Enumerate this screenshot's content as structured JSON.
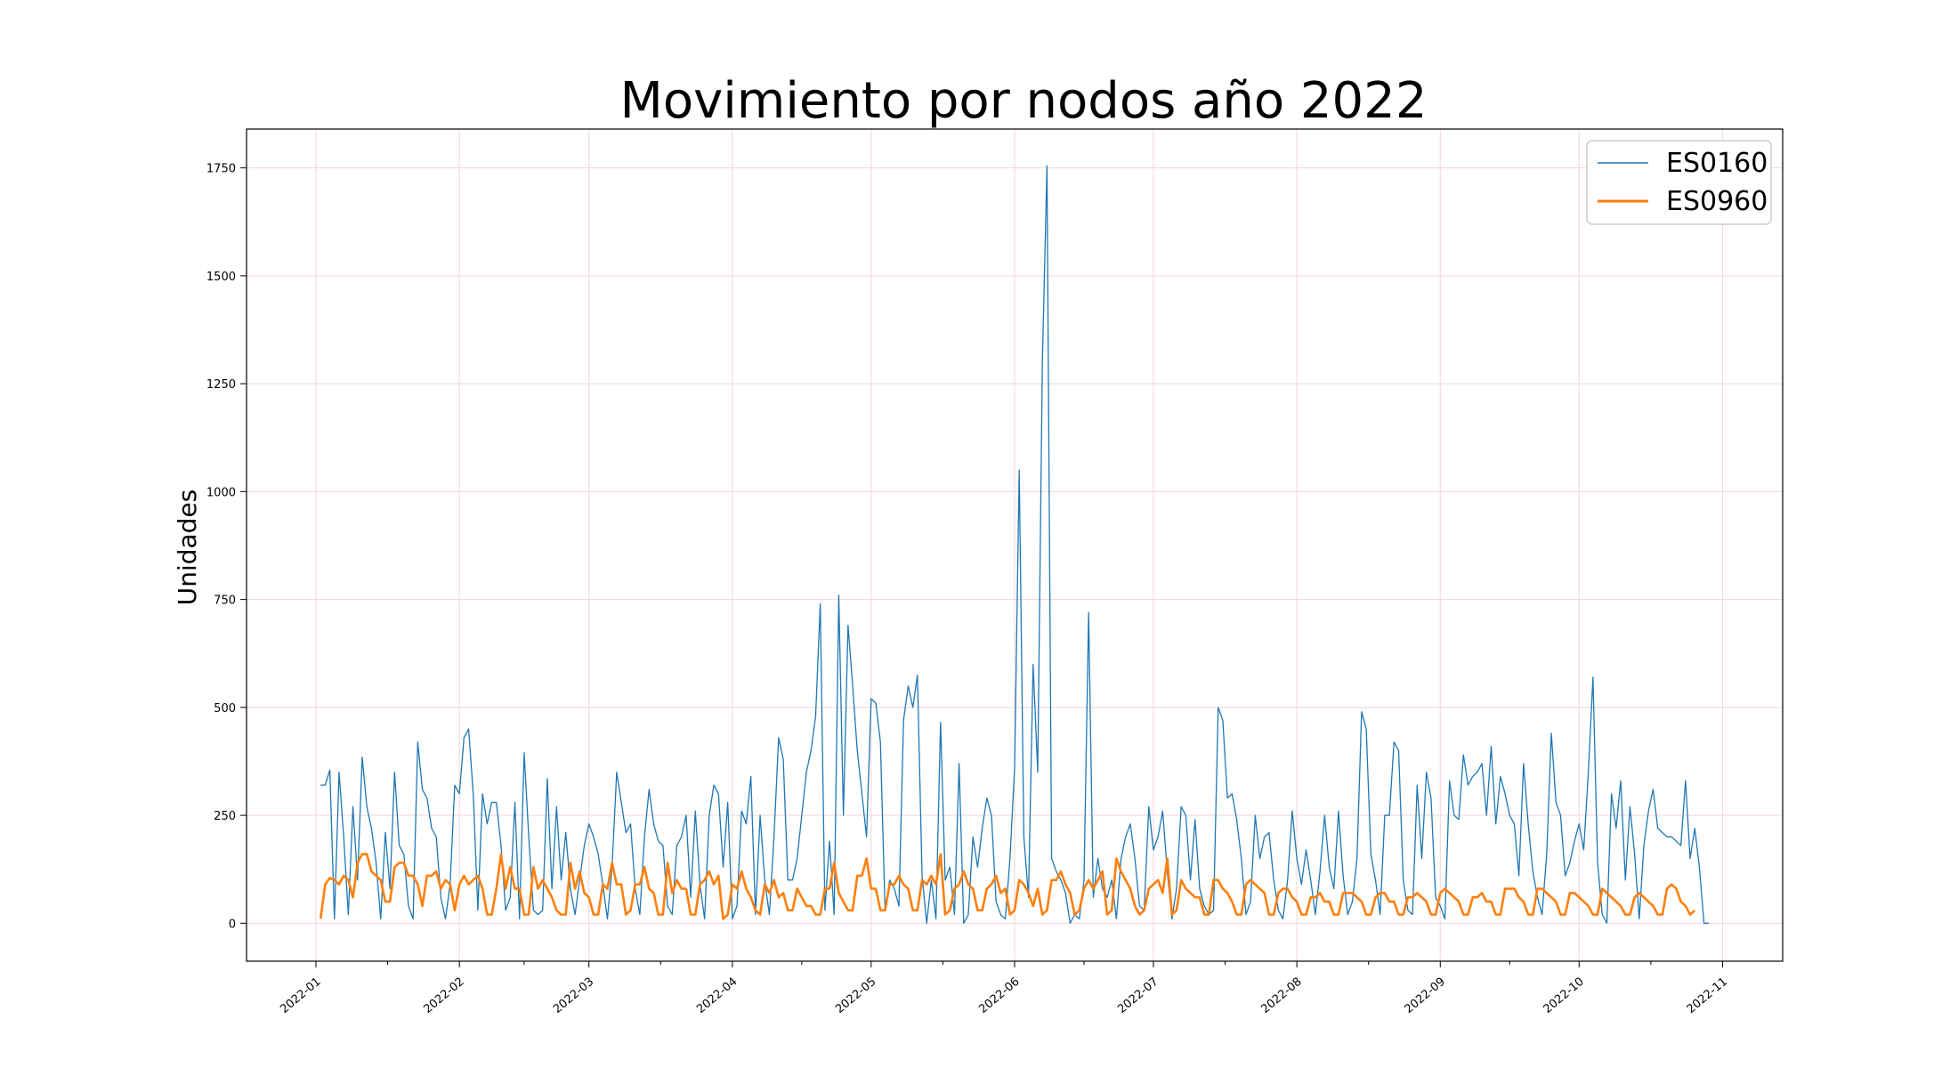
{
  "chart_data": {
    "type": "line",
    "title": "Movimiento por nodos año 2022",
    "xlabel": "",
    "ylabel": "Unidades",
    "x_ticks": [
      "2022-01",
      "2022-02",
      "2022-03",
      "2022-04",
      "2022-05",
      "2022-06",
      "2022-07",
      "2022-08",
      "2022-09",
      "2022-10",
      "2022-11"
    ],
    "y_ticks": [
      0,
      250,
      500,
      750,
      1000,
      1250,
      1500,
      1750
    ],
    "xlim": [
      "2021-12-17",
      "2022-11-14"
    ],
    "ylim": [
      -88,
      1840
    ],
    "grid": true,
    "legend_position": "top-right",
    "series": [
      {
        "name": "ES0160",
        "color": "#1f77b4",
        "start_date": "2022-01-02",
        "values": [
          320,
          320,
          355,
          10,
          350,
          200,
          20,
          270,
          100,
          385,
          270,
          220,
          140,
          10,
          210,
          80,
          350,
          180,
          160,
          40,
          10,
          420,
          310,
          290,
          220,
          200,
          60,
          10,
          90,
          320,
          300,
          430,
          450,
          300,
          30,
          300,
          230,
          280,
          280,
          180,
          30,
          60,
          280,
          10,
          395,
          200,
          30,
          20,
          30,
          335,
          80,
          270,
          100,
          210,
          80,
          20,
          100,
          180,
          230,
          200,
          160,
          90,
          10,
          130,
          350,
          280,
          210,
          230,
          80,
          20,
          200,
          310,
          230,
          190,
          180,
          40,
          20,
          180,
          200,
          250,
          60,
          260,
          90,
          10,
          250,
          320,
          300,
          130,
          280,
          10,
          40,
          260,
          230,
          340,
          20,
          250,
          100,
          20,
          200,
          430,
          380,
          100,
          100,
          150,
          250,
          350,
          400,
          480,
          740,
          30,
          190,
          20,
          760,
          250,
          690,
          550,
          400,
          300,
          200,
          520,
          510,
          420,
          30,
          100,
          80,
          40,
          470,
          550,
          500,
          575,
          110,
          0,
          100,
          10,
          465,
          100,
          130,
          20,
          370,
          0,
          20,
          200,
          130,
          220,
          290,
          250,
          50,
          20,
          10,
          150,
          360,
          1050,
          200,
          60,
          600,
          350,
          1300,
          1755,
          150,
          120,
          100,
          70,
          0,
          20,
          10,
          100,
          720,
          60,
          150,
          80,
          60,
          100,
          10,
          150,
          200,
          230,
          150,
          40,
          30,
          270,
          170,
          200,
          260,
          120,
          10,
          80,
          270,
          250,
          100,
          240,
          80,
          40,
          20,
          30,
          500,
          470,
          290,
          300,
          240,
          150,
          20,
          50,
          250,
          150,
          200,
          210,
          100,
          30,
          10,
          100,
          260,
          150,
          90,
          170,
          100,
          20,
          120,
          250,
          130,
          80,
          260,
          110,
          20,
          50,
          150,
          490,
          450,
          160,
          100,
          20,
          250,
          250,
          420,
          400,
          100,
          30,
          20,
          320,
          150,
          350,
          290,
          60,
          40,
          10,
          330,
          250,
          240,
          390,
          320,
          340,
          350,
          370,
          250,
          410,
          230,
          340,
          300,
          250,
          230,
          110,
          370,
          230,
          120,
          60,
          20,
          160,
          440,
          280,
          250,
          110,
          140,
          190,
          230,
          170,
          350,
          570,
          140,
          20,
          0,
          300,
          220,
          330,
          100,
          270,
          160,
          10,
          180,
          260,
          310,
          220,
          210,
          200,
          200,
          190,
          180,
          330,
          150,
          220,
          130,
          0,
          0
        ]
      },
      {
        "name": "ES0960",
        "color": "#ff7f0e",
        "start_date": "2022-01-02",
        "values": [
          10,
          90,
          105,
          100,
          90,
          110,
          100,
          60,
          140,
          160,
          160,
          120,
          110,
          100,
          50,
          50,
          130,
          140,
          140,
          110,
          110,
          90,
          40,
          110,
          110,
          120,
          80,
          100,
          90,
          30,
          90,
          110,
          90,
          100,
          110,
          80,
          20,
          20,
          80,
          160,
          80,
          130,
          80,
          80,
          20,
          20,
          130,
          80,
          100,
          80,
          60,
          30,
          20,
          20,
          140,
          80,
          120,
          70,
          60,
          20,
          20,
          90,
          80,
          140,
          90,
          90,
          20,
          30,
          90,
          90,
          130,
          80,
          70,
          20,
          20,
          140,
          70,
          100,
          80,
          80,
          20,
          20,
          90,
          100,
          120,
          90,
          110,
          10,
          20,
          90,
          80,
          120,
          80,
          60,
          30,
          20,
          90,
          70,
          100,
          60,
          70,
          30,
          30,
          80,
          60,
          40,
          40,
          20,
          20,
          80,
          80,
          140,
          70,
          50,
          30,
          30,
          110,
          110,
          150,
          80,
          80,
          30,
          30,
          90,
          90,
          110,
          90,
          80,
          30,
          30,
          100,
          90,
          110,
          90,
          160,
          20,
          30,
          80,
          90,
          120,
          90,
          80,
          30,
          30,
          80,
          90,
          110,
          70,
          80,
          20,
          30,
          100,
          90,
          70,
          40,
          80,
          20,
          30,
          100,
          100,
          120,
          90,
          70,
          20,
          30,
          80,
          100,
          80,
          100,
          120,
          20,
          30,
          150,
          120,
          100,
          80,
          40,
          20,
          30,
          80,
          90,
          100,
          70,
          150,
          20,
          30,
          100,
          80,
          70,
          60,
          60,
          20,
          20,
          100,
          100,
          80,
          70,
          50,
          20,
          20,
          90,
          100,
          90,
          80,
          70,
          20,
          20,
          70,
          80,
          80,
          60,
          50,
          20,
          20,
          60,
          60,
          70,
          50,
          50,
          20,
          20,
          70,
          70,
          70,
          60,
          50,
          20,
          20,
          60,
          70,
          70,
          50,
          50,
          20,
          20,
          60,
          60,
          70,
          60,
          50,
          20,
          20,
          70,
          80,
          70,
          60,
          50,
          20,
          20,
          60,
          60,
          70,
          50,
          50,
          20,
          20,
          80,
          80,
          80,
          60,
          50,
          20,
          20,
          80,
          80,
          70,
          60,
          50,
          20,
          20,
          70,
          70,
          60,
          50,
          40,
          20,
          20,
          80,
          70,
          60,
          50,
          40,
          20,
          20,
          60,
          70,
          60,
          50,
          40,
          20,
          20,
          80,
          90,
          80,
          50,
          40,
          20,
          30
        ]
      }
    ]
  }
}
